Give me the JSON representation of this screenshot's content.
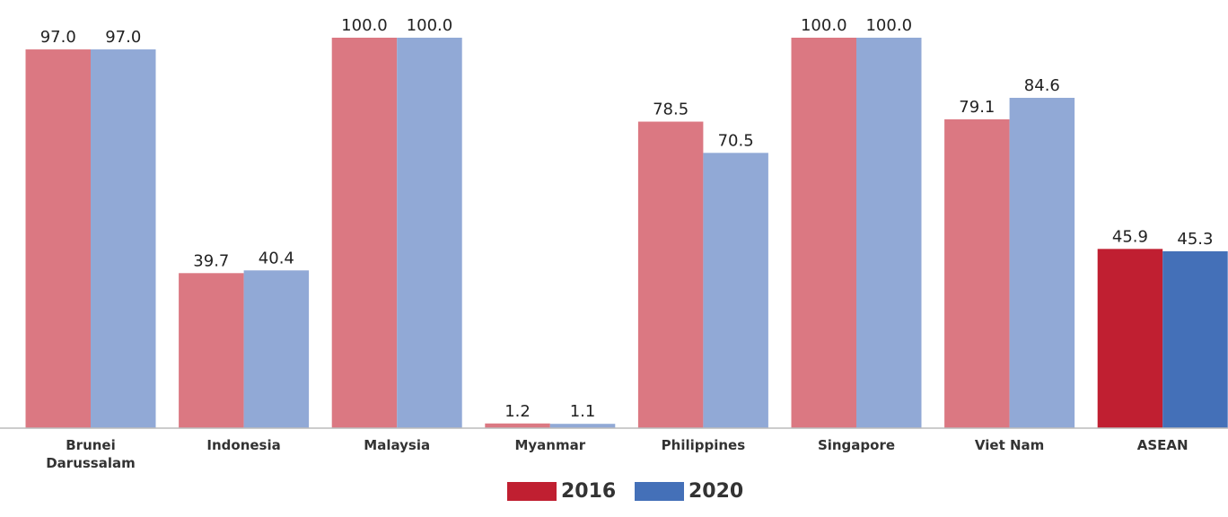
{
  "chart_data": {
    "type": "bar",
    "categories": [
      "Brunei Darussalam",
      "Indonesia",
      "Malaysia",
      "Myanmar",
      "Philippines",
      "Singapore",
      "Viet Nam",
      "ASEAN"
    ],
    "series": [
      {
        "name": "2016",
        "color": "#c01f31",
        "colors": [
          "#db7882",
          "#db7882",
          "#db7882",
          "#db7882",
          "#db7882",
          "#db7882",
          "#db7882",
          "#c01f31"
        ],
        "values": [
          97.0,
          39.7,
          100.0,
          1.2,
          78.5,
          100.0,
          79.1,
          45.9
        ],
        "value_labels": [
          "97.0",
          "39.7",
          "100.0",
          "1.2",
          "78.5",
          "100.0",
          "79.1",
          "45.9"
        ]
      },
      {
        "name": "2020",
        "color": "#4470b8",
        "colors": [
          "#91a9d6",
          "#91a9d6",
          "#91a9d6",
          "#91a9d6",
          "#91a9d6",
          "#91a9d6",
          "#91a9d6",
          "#4470b8"
        ],
        "values": [
          97.0,
          40.4,
          100.0,
          1.1,
          70.5,
          100.0,
          84.6,
          45.3
        ],
        "value_labels": [
          "97.0",
          "40.4",
          "100.0",
          "1.1",
          "70.5",
          "100.0",
          "84.6",
          "45.3"
        ]
      }
    ],
    "ylim": [
      0,
      100
    ]
  }
}
